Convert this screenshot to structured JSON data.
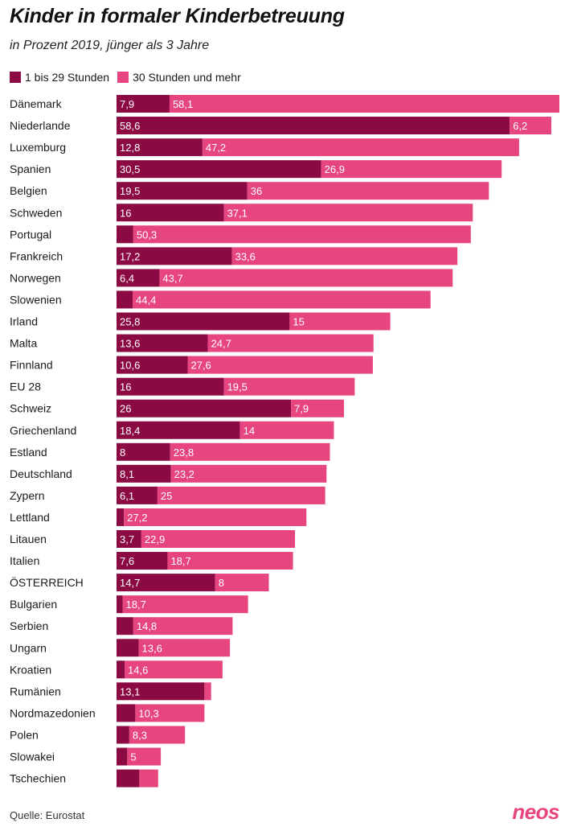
{
  "title": "Kinder in formaler Kinderbetreuung",
  "subtitle": "in Prozent 2019, jünger als 3 Jahre",
  "source": "Quelle: Eurostat",
  "logo_text": "neos",
  "colors": {
    "series1": "#8b0a44",
    "series2": "#e6457f",
    "label": "#ffffff"
  },
  "chart_data": {
    "type": "bar",
    "orientation": "horizontal",
    "stacked": true,
    "categories": [
      "Dänemark",
      "Niederlande",
      "Luxemburg",
      "Spanien",
      "Belgien",
      "Schweden",
      "Portugal",
      "Frankreich",
      "Norwegen",
      "Slowenien",
      "Irland",
      "Malta",
      "Finnland",
      "EU 28",
      "Schweiz",
      "Griechenland",
      "Estland",
      "Deutschland",
      "Zypern",
      "Lettland",
      "Litauen",
      "Italien",
      "ÖSTERREICH",
      "Bulgarien",
      "Serbien",
      "Ungarn",
      "Kroatien",
      "Rumänien",
      "Nordmazedonien",
      "Polen",
      "Slowakei",
      "Tschechien"
    ],
    "series": [
      {
        "name": "1 bis 29 Stunden",
        "values": [
          7.9,
          58.6,
          12.8,
          30.5,
          19.5,
          16,
          2.5,
          17.2,
          6.4,
          2.4,
          25.8,
          13.6,
          10.6,
          16,
          26,
          18.4,
          8,
          8.1,
          6.1,
          1.1,
          3.7,
          7.6,
          14.7,
          0.9,
          2.5,
          3.3,
          1.2,
          13.1,
          2.8,
          1.9,
          1.6,
          3.4
        ],
        "labels": [
          "7,9",
          "58,6",
          "12,8",
          "30,5",
          "19,5",
          "16",
          "",
          "17,2",
          "6,4",
          "",
          "25,8",
          "13,6",
          "10,6",
          "16",
          "26",
          "18,4",
          "8",
          "8,1",
          "6,1",
          "",
          "3,7",
          "7,6",
          "14,7",
          "",
          "",
          "",
          "",
          "13,1",
          "",
          "",
          "",
          ""
        ]
      },
      {
        "name": "30 Stunden und mehr",
        "values": [
          58.1,
          6.2,
          47.2,
          26.9,
          36,
          37.1,
          50.3,
          33.6,
          43.7,
          44.4,
          15,
          24.7,
          27.6,
          19.5,
          7.9,
          14,
          23.8,
          23.2,
          25,
          27.2,
          22.9,
          18.7,
          8,
          18.7,
          14.8,
          13.6,
          14.6,
          1,
          10.3,
          8.3,
          5,
          2.8
        ],
        "labels": [
          "58,1",
          "6,2",
          "47,2",
          "26,9",
          "36",
          "37,1",
          "50,3",
          "33,6",
          "43,7",
          "44,4",
          "15",
          "24,7",
          "27,6",
          "19,5",
          "7,9",
          "14",
          "23,8",
          "23,2",
          "25",
          "27,2",
          "22,9",
          "18,7",
          "8",
          "18,7",
          "14,8",
          "13,6",
          "14,6",
          "",
          "10,3",
          "8,3",
          "5",
          ""
        ]
      }
    ],
    "xlim": [
      0,
      66
    ],
    "grid": false,
    "legend_position": "top-left"
  }
}
